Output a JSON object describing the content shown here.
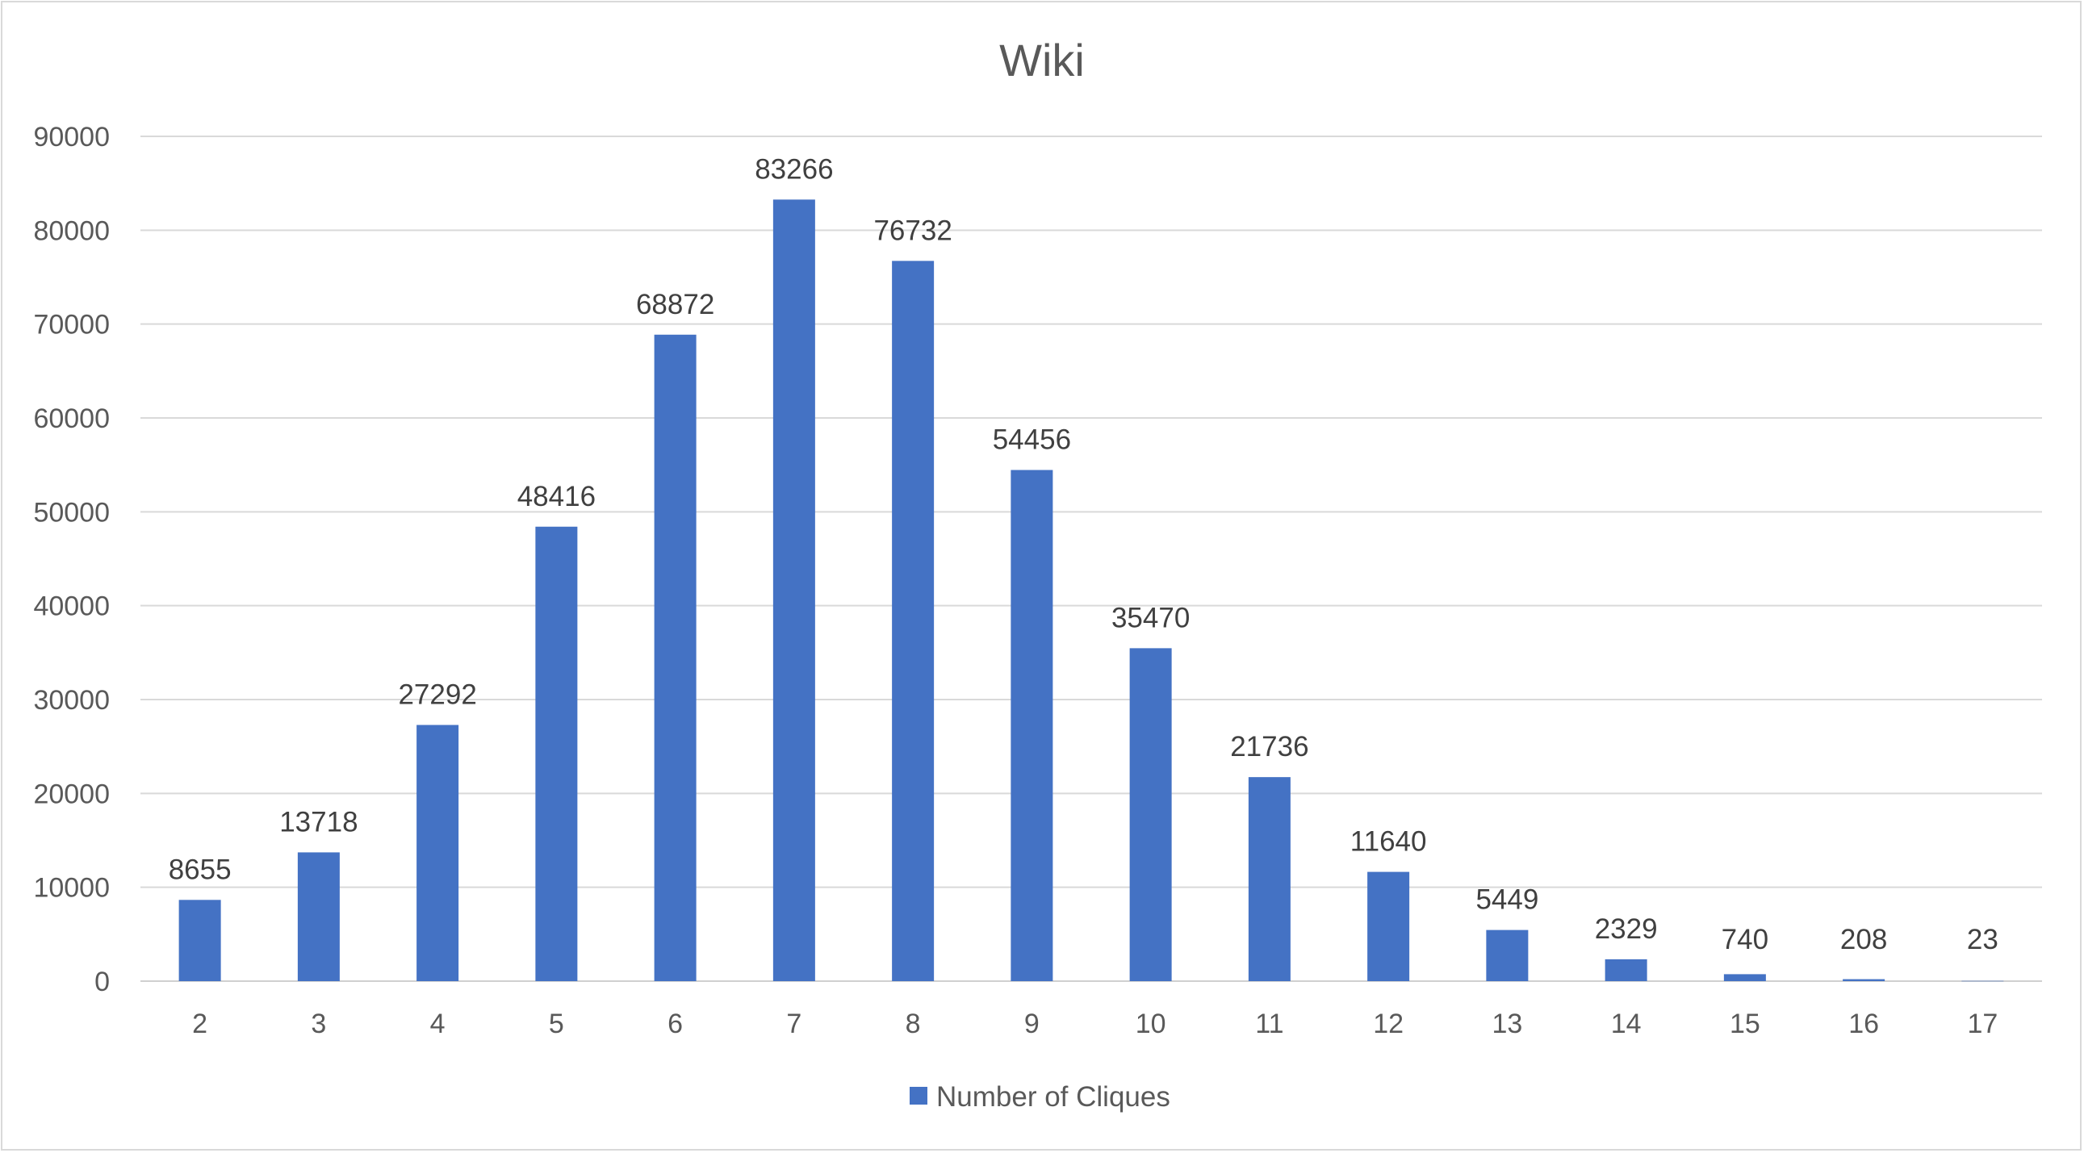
{
  "chart_data": {
    "type": "bar",
    "title": "Wiki",
    "categories": [
      "2",
      "3",
      "4",
      "5",
      "6",
      "7",
      "8",
      "9",
      "10",
      "11",
      "12",
      "13",
      "14",
      "15",
      "16",
      "17"
    ],
    "series": [
      {
        "name": "Number of Cliques",
        "color": "#4472c4",
        "values": [
          8655,
          13718,
          27292,
          48416,
          68872,
          83266,
          76732,
          54456,
          35470,
          21736,
          11640,
          5449,
          2329,
          740,
          208,
          23
        ]
      }
    ],
    "ylim": [
      0,
      90000
    ],
    "yticks": [
      "0",
      "10000",
      "20000",
      "30000",
      "40000",
      "50000",
      "60000",
      "70000",
      "80000",
      "90000"
    ],
    "grid": true,
    "legend_position": "bottom"
  }
}
